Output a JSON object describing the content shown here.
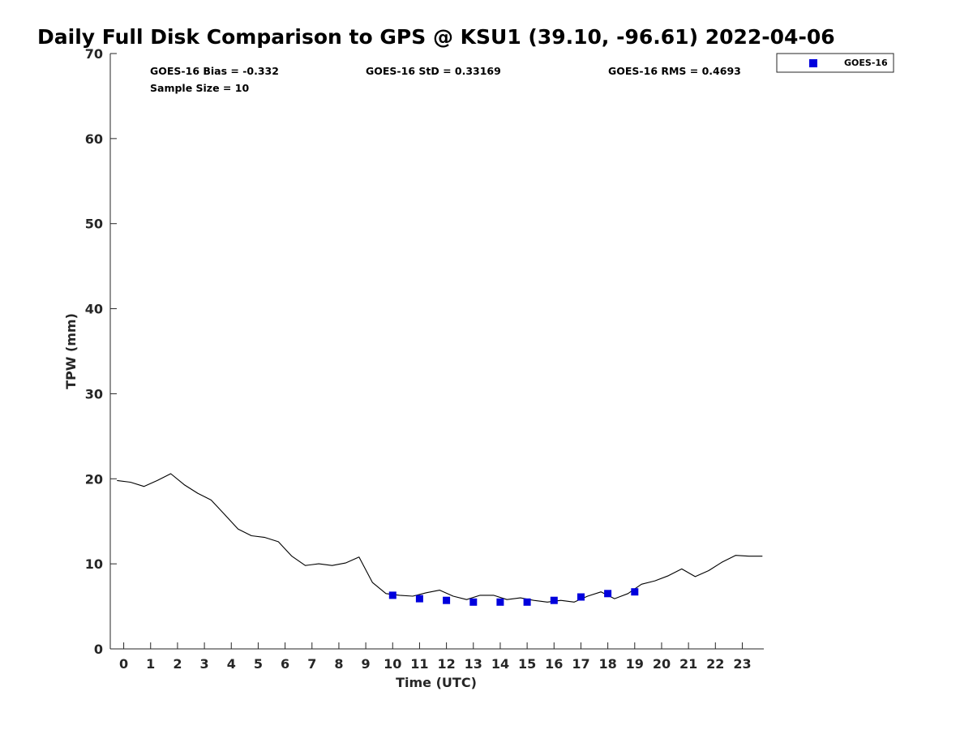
{
  "chart_data": {
    "type": "scatter",
    "title": "Daily Full Disk Comparison to GPS @ KSU1 (39.10, -96.61) 2022-04-06",
    "xlabel": "Time (UTC)",
    "ylabel": "TPW (mm)",
    "xlim": [
      -0.5,
      23.8
    ],
    "ylim": [
      0,
      70
    ],
    "xticks": [
      0,
      1,
      2,
      3,
      4,
      5,
      6,
      7,
      8,
      9,
      10,
      11,
      12,
      13,
      14,
      15,
      16,
      17,
      18,
      19,
      20,
      21,
      22,
      23
    ],
    "yticks": [
      0,
      10,
      20,
      30,
      40,
      50,
      60,
      70
    ],
    "grid": false,
    "legend_position": "top-right, outside plot",
    "stats": {
      "bias": "GOES-16 Bias = -0.332",
      "std": "GOES-16 StD = 0.33169",
      "rms": "GOES-16 RMS = 0.4693",
      "sample": "Sample Size = 10"
    },
    "series": [
      {
        "type": "line",
        "color": "#000000",
        "x": [
          -0.25,
          0.25,
          0.75,
          1.25,
          1.75,
          2.25,
          2.75,
          3.25,
          3.75,
          4.25,
          4.75,
          5.25,
          5.75,
          6.25,
          6.75,
          7.25,
          7.75,
          8.25,
          8.75,
          9.25,
          9.75,
          10.25,
          10.75,
          11.25,
          11.75,
          12.25,
          12.75,
          13.25,
          13.75,
          14.25,
          14.75,
          15.25,
          15.75,
          16.25,
          16.75,
          17.25,
          17.75,
          18.25,
          18.75,
          19.25,
          19.75,
          20.25,
          20.75,
          21.25,
          21.75,
          22.25,
          22.75,
          23.25,
          23.75
        ],
        "y": [
          19.8,
          19.6,
          19.1,
          19.8,
          20.6,
          19.3,
          18.3,
          17.5,
          15.8,
          14.1,
          13.3,
          13.1,
          12.6,
          10.9,
          9.8,
          10.0,
          9.8,
          10.1,
          10.8,
          7.8,
          6.5,
          6.3,
          6.2,
          6.6,
          6.9,
          6.2,
          5.8,
          6.3,
          6.3,
          5.8,
          6.0,
          5.7,
          5.5,
          5.7,
          5.5,
          6.2,
          6.7,
          5.9,
          6.5,
          7.6,
          8.0,
          8.6,
          9.4,
          8.5,
          9.2,
          10.2,
          11.0,
          10.9,
          10.9
        ]
      },
      {
        "name": "GOES-16",
        "type": "scatter",
        "color": "#0000dd",
        "x": [
          10,
          11,
          12,
          13,
          14,
          15,
          16,
          17,
          18,
          19
        ],
        "y": [
          6.3,
          5.9,
          5.7,
          5.5,
          5.5,
          5.5,
          5.7,
          6.1,
          6.5,
          6.7
        ]
      }
    ]
  }
}
